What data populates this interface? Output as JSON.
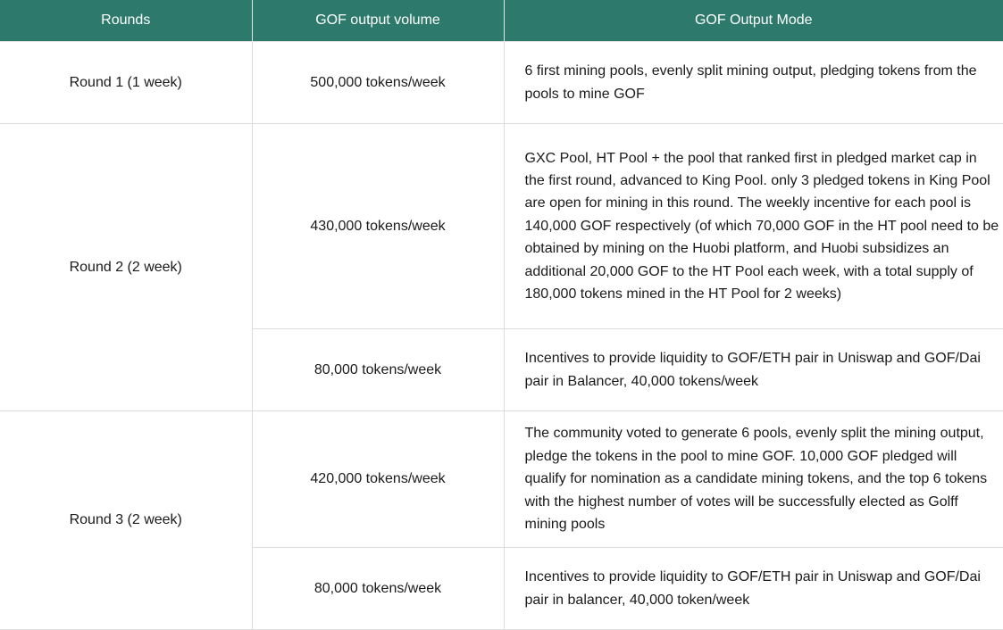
{
  "table": {
    "headers": [
      "Rounds",
      "GOF output volume",
      "GOF Output Mode"
    ],
    "rounds": [
      {
        "label": "Round 1 (1 week)",
        "outputs": [
          {
            "volume": "500,000 tokens/week",
            "mode": "6 first mining pools, evenly split mining output, pledging tokens from the pools to mine GOF"
          }
        ]
      },
      {
        "label": "Round 2 (2 week)",
        "outputs": [
          {
            "volume": "430,000 tokens/week",
            "mode": "GXC Pool, HT Pool + the pool that ranked first in pledged market cap in the first round, advanced to King Pool. only 3 pledged tokens in King Pool are open for mining in this round. The weekly incentive for each pool is 140,000 GOF respectively (of which 70,000 GOF in the HT pool need to be obtained by mining on the Huobi platform, and Huobi subsidizes an additional 20,000 GOF to the HT Pool each week, with a total supply of 180,000 tokens mined in the HT Pool for 2 weeks)"
          },
          {
            "volume": "80,000 tokens/week",
            "mode": "Incentives to provide liquidity to GOF/ETH pair in Uniswap and GOF/Dai pair in Balancer, 40,000 tokens/week"
          }
        ]
      },
      {
        "label": "Round 3 (2 week)",
        "outputs": [
          {
            "volume": "420,000 tokens/week",
            "mode": "The community voted to generate 6 pools, evenly split the mining output, pledge the tokens in the pool to mine GOF. 10,000 GOF pledged will qualify for nomination as a candidate mining tokens, and the top 6 tokens with the highest number of votes will be successfully elected as Golff mining pools"
          },
          {
            "volume": "80,000 tokens/week",
            "mode": "Incentives to provide liquidity to GOF/ETH pair in Uniswap and GOF/Dai pair in balancer, 40,000 token/week"
          }
        ]
      }
    ]
  },
  "colors": {
    "header_bg": "#2d7a6c",
    "header_text": "#ffffff",
    "border": "#dcdcdc"
  }
}
